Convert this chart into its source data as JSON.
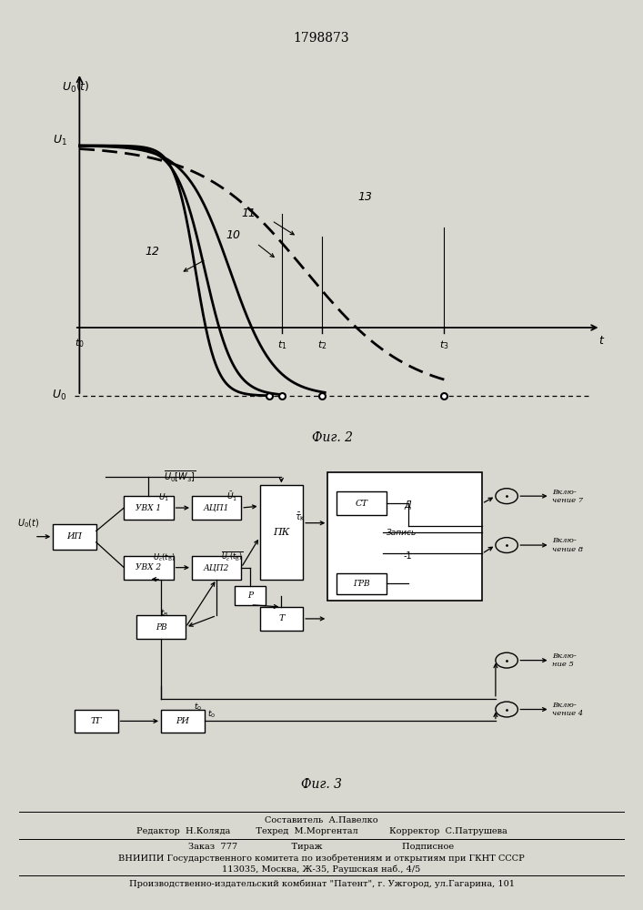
{
  "title": "1798873",
  "fig2_caption": "Фиг. 2",
  "fig3_caption": "Фиг. 3",
  "bg": "#d8d8d0",
  "footer1": "Составитель  А.Павелко",
  "footer2": "Редактор  Н.Коляда         Техред  М.Моргентал           Корректор  С.Патрушева",
  "footer3": "Заказ  777                   Тираж                            Подписное",
  "footer4": "ВНИИПИ Государственного комитета по изобретениям и открытиям при ГКНТ СССР",
  "footer5": "113035, Москва, Ж-35, Раушская наб., 4/5",
  "footer6": "Производственно-издательский комбинат \"Патент\", г. Ужгород, ул.Гагарина, 101"
}
